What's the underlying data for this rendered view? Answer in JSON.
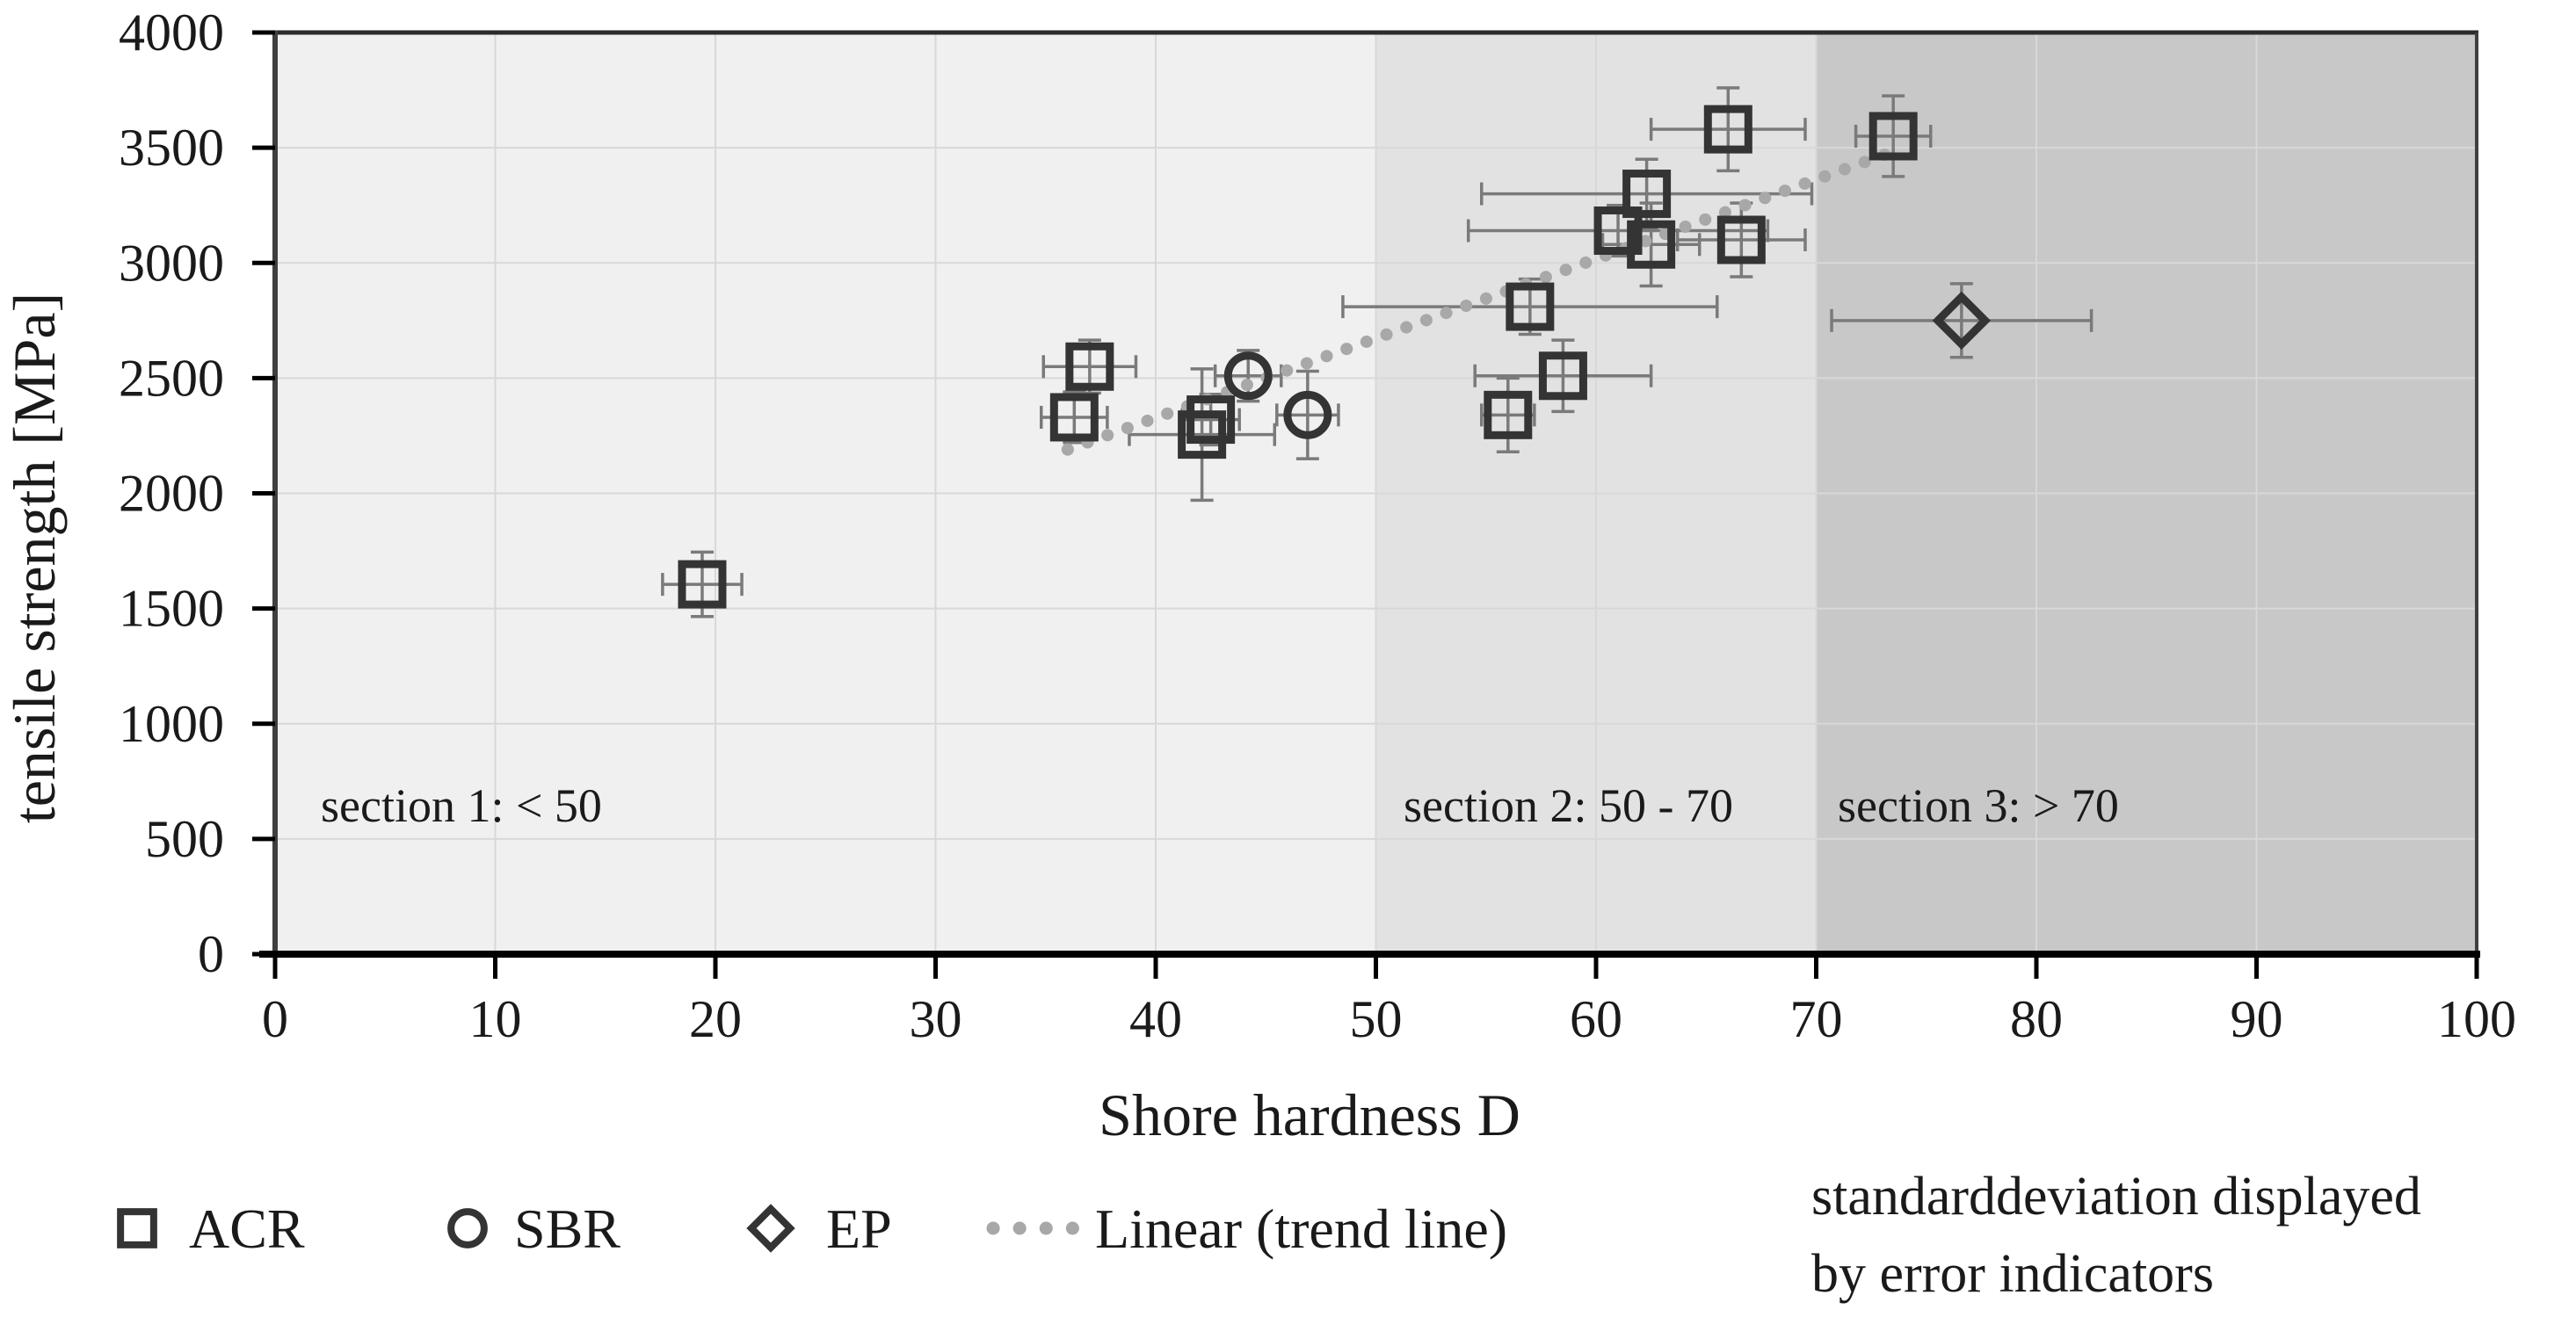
{
  "chart_data": {
    "type": "scatter",
    "title": "",
    "xlabel": "Shore hardness D",
    "ylabel": "tensile strength [MPa]",
    "xlim": [
      0,
      100
    ],
    "ylim": [
      0,
      4000
    ],
    "xticks": [
      0,
      10,
      20,
      30,
      40,
      50,
      60,
      70,
      80,
      90,
      100
    ],
    "yticks": [
      0,
      500,
      1000,
      1500,
      2000,
      2500,
      3000,
      3500,
      4000
    ],
    "grid": true,
    "legend_position": "bottom",
    "sections": [
      {
        "label": "section 1: < 50",
        "xmin": 0,
        "xmax": 50,
        "color": "#f1f0f0"
      },
      {
        "label": "section 2: 50 - 70",
        "xmin": 50,
        "xmax": 70,
        "color": "#e3e2e2"
      },
      {
        "label": "section 3: > 70",
        "xmin": 70,
        "xmax": 100,
        "color": "#c9c8c8"
      }
    ],
    "series": [
      {
        "name": "ACR",
        "marker": "square",
        "points": [
          {
            "x": 19.4,
            "y": 1605,
            "xerr": 1.8,
            "yerr": 140
          },
          {
            "x": 36.3,
            "y": 2330,
            "xerr": 1.5,
            "yerr": 110
          },
          {
            "x": 37.0,
            "y": 2550,
            "xerr": 2.1,
            "yerr": 115
          },
          {
            "x": 42.1,
            "y": 2255,
            "xerr": 3.3,
            "yerr": 285
          },
          {
            "x": 42.5,
            "y": 2320,
            "xerr": 1.3,
            "yerr": 110
          },
          {
            "x": 56.0,
            "y": 2340,
            "xerr": 1.2,
            "yerr": 160
          },
          {
            "x": 57.0,
            "y": 2810,
            "xerr": 8.5,
            "yerr": 120
          },
          {
            "x": 58.5,
            "y": 2510,
            "xerr": 4.0,
            "yerr": 155
          },
          {
            "x": 61.0,
            "y": 3140,
            "xerr": 6.8,
            "yerr": 110
          },
          {
            "x": 62.3,
            "y": 3300,
            "xerr": 7.5,
            "yerr": 150
          },
          {
            "x": 62.5,
            "y": 3080,
            "xerr": 2.2,
            "yerr": 180
          },
          {
            "x": 66.0,
            "y": 3580,
            "xerr": 3.5,
            "yerr": 180
          },
          {
            "x": 66.6,
            "y": 3100,
            "xerr": 2.9,
            "yerr": 160
          },
          {
            "x": 73.5,
            "y": 3550,
            "xerr": 1.7,
            "yerr": 175
          }
        ]
      },
      {
        "name": "SBR",
        "marker": "circle",
        "points": [
          {
            "x": 44.2,
            "y": 2510,
            "xerr": 1.5,
            "yerr": 110
          },
          {
            "x": 46.9,
            "y": 2340,
            "xerr": 1.4,
            "yerr": 190
          }
        ]
      },
      {
        "name": "EP",
        "marker": "diamond",
        "points": [
          {
            "x": 76.6,
            "y": 2750,
            "xerr": 5.9,
            "yerr": 160
          }
        ]
      }
    ],
    "trend_line": {
      "label": "Linear (trend line)",
      "style": "dotted",
      "color": "#a8a8a8",
      "x_start": 36,
      "y_start": 2190,
      "x_end": 74,
      "y_end": 3500
    },
    "legend": [
      "ACR",
      "SBR",
      "EP",
      "Linear (trend line)"
    ],
    "note": {
      "line1": "standarddeviation displayed",
      "line2": "by error indicators"
    },
    "colors": {
      "marker_stroke": "#343434",
      "error_bar": "#7a7a7a",
      "gridline": "#d8d8d8",
      "axis": "#000000",
      "plot_border": "#3f3f3f",
      "section1_bg": "#f1f0f0",
      "section2_bg": "#e3e2e2",
      "section3_bg": "#c9c8c8",
      "trend": "#a8a8a8"
    }
  }
}
